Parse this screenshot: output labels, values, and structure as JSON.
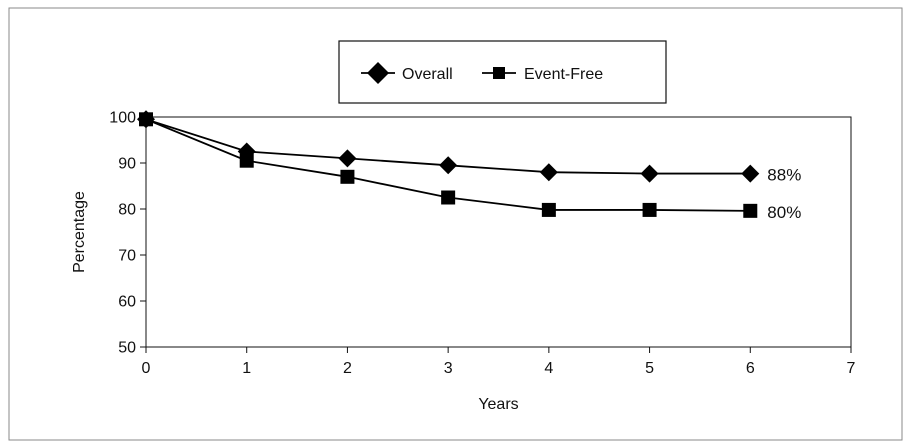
{
  "chart_data": {
    "type": "line",
    "title": "",
    "xlabel": "Years",
    "ylabel": "Percentage",
    "xlim": [
      0,
      7
    ],
    "ylim": [
      50,
      100
    ],
    "xticks": [
      0,
      1,
      2,
      3,
      4,
      5,
      6,
      7
    ],
    "yticks": [
      50,
      60,
      70,
      80,
      90,
      100
    ],
    "grid": false,
    "legend": {
      "placement": "top-center",
      "entries": [
        "Overall",
        "Event-Free"
      ]
    },
    "series": [
      {
        "name": "Overall",
        "marker": "diamond",
        "x": [
          0,
          1,
          2,
          3,
          4,
          5,
          6
        ],
        "y": [
          99.5,
          92.5,
          91,
          89.5,
          88,
          87.7,
          87.7
        ],
        "end_label": "88%"
      },
      {
        "name": "Event-Free",
        "marker": "square",
        "x": [
          0,
          1,
          2,
          3,
          4,
          5,
          6
        ],
        "y": [
          99.5,
          90.5,
          87,
          82.5,
          79.8,
          79.8,
          79.6
        ],
        "end_label": "80%"
      }
    ],
    "colors": {
      "line": "#000000",
      "frame": "#8a8a8a"
    }
  }
}
